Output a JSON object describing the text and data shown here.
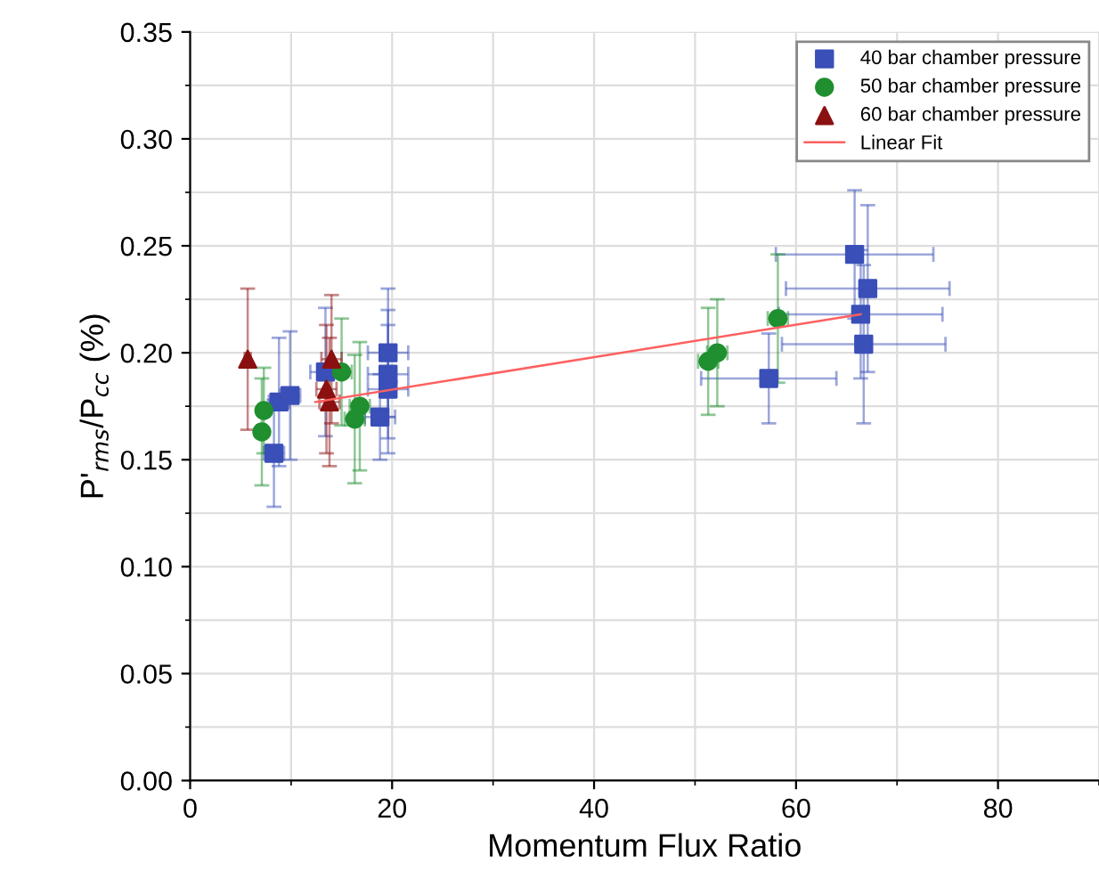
{
  "chart_data": {
    "type": "scatter",
    "xlabel": "Momentum Flux Ratio",
    "ylabel": "P'$_{rms}$/P$_{cc}$ (%)",
    "xlim": [
      0,
      90
    ],
    "ylim": [
      0,
      0.35
    ],
    "xticks": [
      0,
      20,
      40,
      60,
      80
    ],
    "yticks": [
      {
        "value": 0,
        "label": "0.00"
      },
      {
        "value": 0.05,
        "label": "0.05"
      },
      {
        "value": 0.1,
        "label": "0.10"
      },
      {
        "value": 0.15,
        "label": "0.15"
      },
      {
        "value": 0.2,
        "label": "0.20"
      },
      {
        "value": 0.25,
        "label": "0.25"
      },
      {
        "value": 0.3,
        "label": "0.30"
      },
      {
        "value": 0.35,
        "label": "0.35"
      }
    ],
    "grid": true,
    "legend": "top right",
    "series": [
      {
        "name": "40 bar chamber pressure",
        "color": "#3a4fb8",
        "marker": "square",
        "x": [
          8.3,
          8.8,
          9.9,
          13.4,
          18.8,
          19.6,
          19.6,
          19.6,
          57.3,
          65.8,
          67.1,
          66.4,
          66.7
        ],
        "values": [
          0.153,
          0.177,
          0.18,
          0.191,
          0.17,
          0.183,
          0.19,
          0.2,
          0.188,
          0.246,
          0.23,
          0.218,
          0.204
        ],
        "errors": [
          0.025,
          0.03,
          0.03,
          0.03,
          0.02,
          0.03,
          0.03,
          0.03,
          0.021,
          0.03,
          0.039,
          0.03,
          0.037
        ],
        "xerrors": [
          1,
          1,
          1,
          1.5,
          1.5,
          2,
          2,
          2,
          6.7,
          7.8,
          8.1,
          8.1,
          8.1
        ]
      },
      {
        "name": "50 bar chamber pressure",
        "color": "#1f8f2f",
        "marker": "circle",
        "x": [
          7.1,
          7.3,
          15.0,
          16.3,
          16.8,
          51.3,
          52.2,
          58.2
        ],
        "values": [
          0.163,
          0.173,
          0.191,
          0.169,
          0.175,
          0.196,
          0.2,
          0.216
        ],
        "errors": [
          0.025,
          0.02,
          0.025,
          0.03,
          0.03,
          0.025,
          0.025,
          0.03
        ],
        "xerrors": [
          0.5,
          0.5,
          1,
          1,
          1,
          1,
          1,
          1
        ]
      },
      {
        "name": "60 bar chamber pressure",
        "color": "#8b1010",
        "marker": "triangle",
        "x": [
          5.7,
          14.0,
          13.5,
          13.8
        ],
        "values": [
          0.197,
          0.197,
          0.183,
          0.177
        ],
        "errors": [
          0.033,
          0.03,
          0.03,
          0.03
        ],
        "xerrors": [
          0.3,
          1,
          1,
          1
        ]
      },
      {
        "name": "Linear Fit",
        "type": "line",
        "color": "#ff6060",
        "marker": "none",
        "x": [
          12.4,
          66.4
        ],
        "values": [
          0.177,
          0.218
        ]
      }
    ]
  }
}
